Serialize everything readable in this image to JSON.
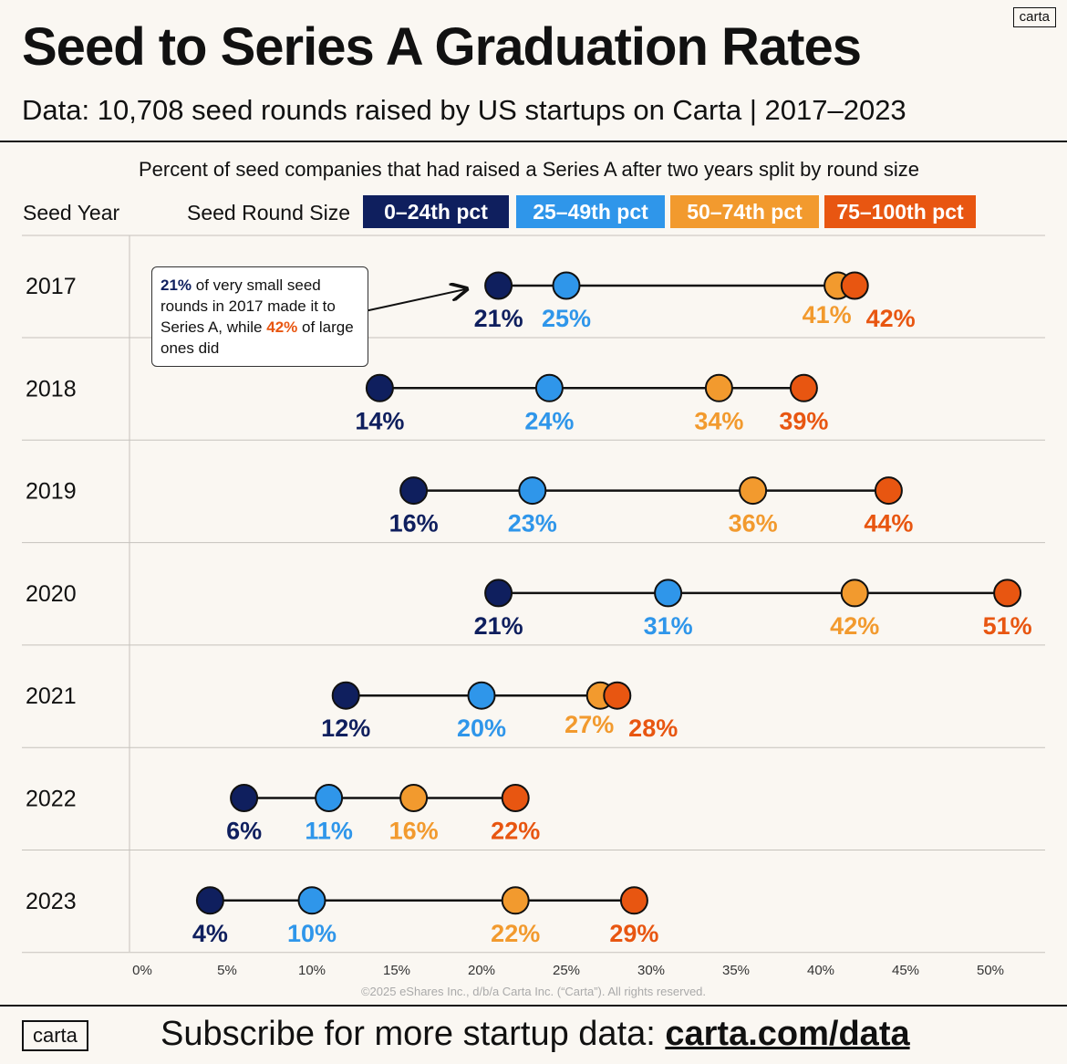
{
  "brand": "carta",
  "title": "Seed to Series A Graduation Rates",
  "subtitle": "Data: 10,708 seed rounds raised by US startups on Carta | 2017–2023",
  "chart_subtitle": "Percent of seed companies that had raised a Series A after two years split by round size",
  "row_header": "Seed Year",
  "legend_title": "Seed Round Size",
  "callout": {
    "part1": "21%",
    "part2": " of very small seed rounds in 2017 made it to Series A, while ",
    "part3": "42%",
    "part4": " of large ones did"
  },
  "copyright": "©2025 eShares Inc., d/b/a Carta Inc. (“Carta”). All rights reserved.",
  "footer": {
    "text": "Subscribe for more startup data: ",
    "link": "carta.com/data"
  },
  "chart_data": {
    "type": "dot-range",
    "title": "Seed to Series A Graduation Rates",
    "xlabel": "",
    "ylabel": "Seed Year",
    "xlim": [
      0,
      55
    ],
    "x_ticks": [
      "0%",
      "5%",
      "10%",
      "15%",
      "20%",
      "25%",
      "30%",
      "35%",
      "40%",
      "45%",
      "50%"
    ],
    "categories": [
      "2017",
      "2018",
      "2019",
      "2020",
      "2021",
      "2022",
      "2023"
    ],
    "series": [
      {
        "name": "0–24th pct",
        "color": "#0f1f5e",
        "values": [
          21,
          14,
          16,
          21,
          12,
          6,
          4
        ]
      },
      {
        "name": "25–49th pct",
        "color": "#2f96ea",
        "values": [
          25,
          24,
          23,
          31,
          20,
          11,
          10
        ]
      },
      {
        "name": "50–74th pct",
        "color": "#f29a2e",
        "values": [
          41,
          34,
          36,
          42,
          27,
          16,
          22
        ]
      },
      {
        "name": "75–100th pct",
        "color": "#e85611",
        "values": [
          42,
          39,
          44,
          51,
          28,
          22,
          29
        ]
      }
    ],
    "value_labels": [
      [
        "21%",
        "25%",
        "41%",
        "42%"
      ],
      [
        "14%",
        "24%",
        "34%",
        "39%"
      ],
      [
        "16%",
        "23%",
        "36%",
        "44%"
      ],
      [
        "21%",
        "31%",
        "42%",
        "51%"
      ],
      [
        "12%",
        "20%",
        "27%",
        "28%"
      ],
      [
        "6%",
        "11%",
        "16%",
        "22%"
      ],
      [
        "4%",
        "10%",
        "22%",
        "29%"
      ]
    ]
  }
}
